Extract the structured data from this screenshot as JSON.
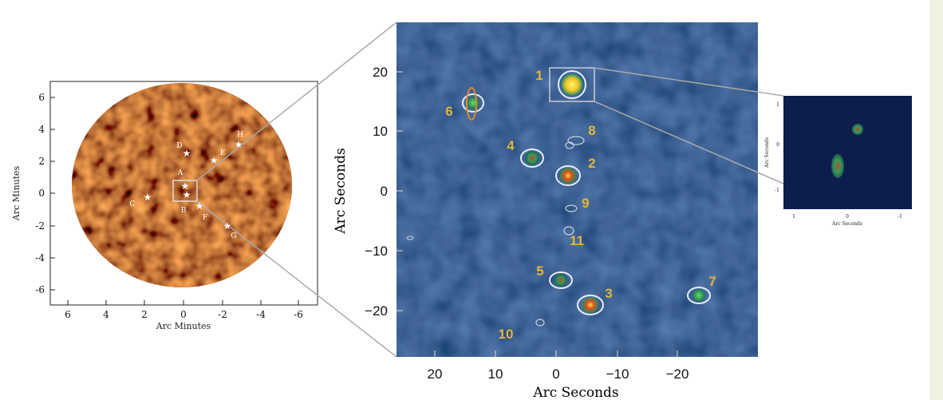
{
  "left_panel": {
    "x_label": "Arc Minutes",
    "y_label": "Arc Minutes",
    "x_ticks": [
      "6",
      "4",
      "2",
      "0",
      "-2",
      "-4",
      "-6"
    ],
    "y_ticks": [
      "6",
      "4",
      "2",
      "0",
      "-2",
      "-4",
      "-6"
    ],
    "sources": [
      "A",
      "B",
      "C",
      "D",
      "E",
      "F",
      "G",
      "H"
    ]
  },
  "middle_panel": {
    "x_label": "Arc Seconds",
    "y_label": "Arc Seconds",
    "x_ticks": [
      "20",
      "10",
      "0",
      "−10",
      "−20"
    ],
    "y_ticks": [
      "20",
      "10",
      "0",
      "−10",
      "−20"
    ],
    "sources": [
      "1",
      "2",
      "3",
      "4",
      "5",
      "6",
      "7",
      "8",
      "9",
      "10",
      "11"
    ]
  },
  "right_panel": {
    "x_label": "Arc Seconds",
    "y_label": "Arc Seconds",
    "x_ticks": [
      "1",
      "0",
      "-1"
    ],
    "y_ticks": [
      "1",
      "0",
      "-1"
    ]
  }
}
